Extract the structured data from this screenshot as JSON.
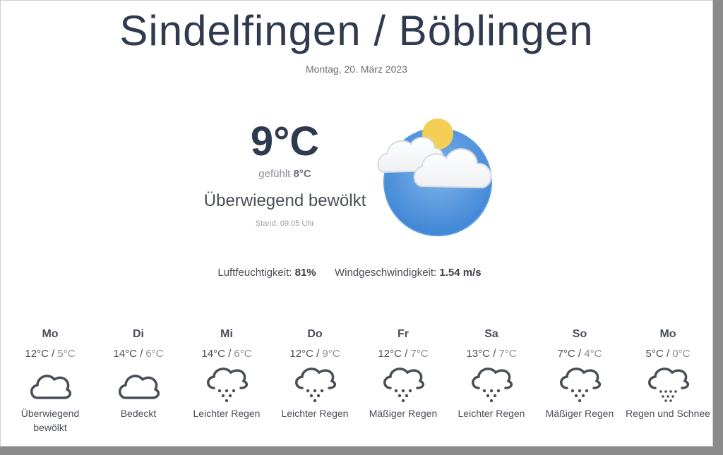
{
  "header": {
    "city": "Sindelfingen / Böblingen",
    "date": "Montag, 20. März 2023"
  },
  "current": {
    "temperature": "9°C",
    "feels_prefix": "gefühlt",
    "feels_value": "8°C",
    "condition": "Überwiegend bewölkt",
    "updated": "Stand: 09:05 Uhr",
    "icon": "partly-cloudy-sun-icon"
  },
  "stats": {
    "humidity_label": "Luftfeuchtigkeit:",
    "humidity_value": "81%",
    "wind_label": "Windgeschwindigkeit:",
    "wind_value": "1.54 m/s"
  },
  "forecast": [
    {
      "day": "Mo",
      "high": "12°C",
      "low": "5°C",
      "desc": "Überwiegend bewölkt",
      "icon": "cloud-icon"
    },
    {
      "day": "Di",
      "high": "14°C",
      "low": "6°C",
      "desc": "Bedeckt",
      "icon": "cloud-icon"
    },
    {
      "day": "Mi",
      "high": "14°C",
      "low": "6°C",
      "desc": "Leichter Regen",
      "icon": "rain-cloud-icon"
    },
    {
      "day": "Do",
      "high": "12°C",
      "low": "9°C",
      "desc": "Leichter Regen",
      "icon": "rain-cloud-icon"
    },
    {
      "day": "Fr",
      "high": "12°C",
      "low": "7°C",
      "desc": "Mäßiger Regen",
      "icon": "rain-cloud-icon"
    },
    {
      "day": "Sa",
      "high": "13°C",
      "low": "7°C",
      "desc": "Leichter Regen",
      "icon": "rain-cloud-icon"
    },
    {
      "day": "So",
      "high": "7°C",
      "low": "4°C",
      "desc": "Mäßiger Regen",
      "icon": "rain-cloud-icon"
    },
    {
      "day": "Mo",
      "high": "5°C",
      "low": "0°C",
      "desc": "Regen und Schnee",
      "icon": "sleet-cloud-icon"
    }
  ]
}
